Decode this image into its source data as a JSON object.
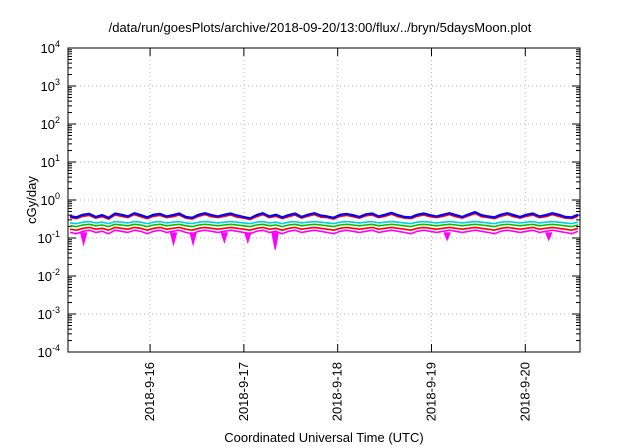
{
  "chart_data": {
    "type": "line",
    "title": "/data/run/goesPlots/archive/2018-09-20/13:00/flux/../bryn/5daysMoon.plot",
    "xlabel": "Coordinated Universal Time (UTC)",
    "ylabel": "cGy/day",
    "yscale": "log",
    "ylim": [
      0.0001,
      10000
    ],
    "y_ticks": [
      {
        "base": "10",
        "exp": "-4"
      },
      {
        "base": "10",
        "exp": "-3"
      },
      {
        "base": "10",
        "exp": "-2"
      },
      {
        "base": "10",
        "exp": "-1"
      },
      {
        "base": "10",
        "exp": "0"
      },
      {
        "base": "10",
        "exp": "1"
      },
      {
        "base": "10",
        "exp": "2"
      },
      {
        "base": "10",
        "exp": "3"
      },
      {
        "base": "10",
        "exp": "4"
      }
    ],
    "xlim": [
      "2018-09-15 03:00",
      "2018-09-20 14:00"
    ],
    "x_ticks": [
      {
        "label": "2018-9-16",
        "value": "2018-09-16 00:00"
      },
      {
        "label": "2018-9-17",
        "value": "2018-09-17 00:00"
      },
      {
        "label": "2018-9-18",
        "value": "2018-09-18 00:00"
      },
      {
        "label": "2018-9-19",
        "value": "2018-09-19 00:00"
      },
      {
        "label": "2018-9-20",
        "value": "2018-09-20 00:00"
      }
    ],
    "grid": true,
    "legend": "none",
    "series": [
      {
        "color": "#ff00ff",
        "values": [
          0.14,
          0.13,
          0.15,
          0.16,
          0.14,
          0.15,
          0.13,
          0.16,
          0.15,
          0.14,
          0.16,
          0.15,
          0.13,
          0.15,
          0.16,
          0.14,
          0.15,
          0.16,
          0.14,
          0.13,
          0.15,
          0.16,
          0.15,
          0.14,
          0.15,
          0.16,
          0.15,
          0.14,
          0.13,
          0.15,
          0.16,
          0.14,
          0.15,
          0.13,
          0.15,
          0.16,
          0.14,
          0.15,
          0.16,
          0.15,
          0.14,
          0.13,
          0.15,
          0.16,
          0.15,
          0.14,
          0.15,
          0.16,
          0.14,
          0.15,
          0.16,
          0.15,
          0.14,
          0.13,
          0.15,
          0.16,
          0.15,
          0.14,
          0.15,
          0.16,
          0.15,
          0.14,
          0.15,
          0.16,
          0.15,
          0.14,
          0.13,
          0.15,
          0.16,
          0.15,
          0.14,
          0.15,
          0.16,
          0.14,
          0.15,
          0.16,
          0.15,
          0.14,
          0.13,
          0.15
        ]
      },
      {
        "color": "#ff0000",
        "values": [
          0.17,
          0.16,
          0.18,
          0.19,
          0.17,
          0.18,
          0.16,
          0.19,
          0.18,
          0.17,
          0.19,
          0.18,
          0.16,
          0.18,
          0.19,
          0.17,
          0.18,
          0.19,
          0.17,
          0.16,
          0.18,
          0.19,
          0.18,
          0.17,
          0.18,
          0.19,
          0.18,
          0.17,
          0.16,
          0.18,
          0.19,
          0.17,
          0.18,
          0.16,
          0.18,
          0.19,
          0.17,
          0.18,
          0.19,
          0.18,
          0.17,
          0.16,
          0.18,
          0.19,
          0.18,
          0.17,
          0.18,
          0.19,
          0.17,
          0.18,
          0.19,
          0.18,
          0.17,
          0.16,
          0.18,
          0.19,
          0.18,
          0.17,
          0.18,
          0.19,
          0.18,
          0.17,
          0.18,
          0.19,
          0.18,
          0.17,
          0.16,
          0.18,
          0.19,
          0.18,
          0.17,
          0.18,
          0.19,
          0.17,
          0.18,
          0.19,
          0.18,
          0.17,
          0.16,
          0.18
        ]
      },
      {
        "color": "#00c000",
        "values": [
          0.21,
          0.2,
          0.22,
          0.23,
          0.21,
          0.22,
          0.2,
          0.23,
          0.22,
          0.21,
          0.23,
          0.22,
          0.2,
          0.22,
          0.23,
          0.21,
          0.22,
          0.23,
          0.21,
          0.2,
          0.22,
          0.23,
          0.22,
          0.21,
          0.22,
          0.23,
          0.22,
          0.21,
          0.2,
          0.22,
          0.23,
          0.21,
          0.22,
          0.2,
          0.22,
          0.23,
          0.21,
          0.22,
          0.23,
          0.22,
          0.21,
          0.2,
          0.22,
          0.23,
          0.22,
          0.21,
          0.22,
          0.23,
          0.21,
          0.22,
          0.23,
          0.22,
          0.21,
          0.2,
          0.22,
          0.23,
          0.22,
          0.21,
          0.22,
          0.23,
          0.22,
          0.21,
          0.22,
          0.23,
          0.22,
          0.21,
          0.2,
          0.22,
          0.23,
          0.22,
          0.21,
          0.22,
          0.23,
          0.21,
          0.22,
          0.23,
          0.22,
          0.21,
          0.2,
          0.22
        ]
      },
      {
        "color": "#00d0e0",
        "values": [
          0.25,
          0.24,
          0.26,
          0.27,
          0.25,
          0.26,
          0.24,
          0.27,
          0.26,
          0.25,
          0.27,
          0.26,
          0.24,
          0.26,
          0.27,
          0.25,
          0.26,
          0.27,
          0.25,
          0.24,
          0.26,
          0.27,
          0.26,
          0.25,
          0.26,
          0.27,
          0.26,
          0.25,
          0.24,
          0.26,
          0.27,
          0.25,
          0.26,
          0.24,
          0.26,
          0.27,
          0.25,
          0.26,
          0.27,
          0.26,
          0.25,
          0.24,
          0.26,
          0.27,
          0.26,
          0.25,
          0.26,
          0.27,
          0.25,
          0.26,
          0.27,
          0.26,
          0.25,
          0.24,
          0.26,
          0.27,
          0.26,
          0.25,
          0.26,
          0.27,
          0.26,
          0.25,
          0.26,
          0.27,
          0.26,
          0.25,
          0.24,
          0.26,
          0.27,
          0.26,
          0.25,
          0.26,
          0.27,
          0.25,
          0.26,
          0.27,
          0.26,
          0.25,
          0.24,
          0.26
        ]
      },
      {
        "color": "#ff0000",
        "values": [
          0.35,
          0.33,
          0.38,
          0.4,
          0.34,
          0.37,
          0.32,
          0.41,
          0.38,
          0.35,
          0.42,
          0.37,
          0.33,
          0.38,
          0.4,
          0.35,
          0.37,
          0.41,
          0.34,
          0.32,
          0.38,
          0.42,
          0.37,
          0.35,
          0.38,
          0.41,
          0.36,
          0.34,
          0.31,
          0.37,
          0.42,
          0.35,
          0.38,
          0.33,
          0.37,
          0.41,
          0.34,
          0.38,
          0.42,
          0.36,
          0.35,
          0.32,
          0.38,
          0.4,
          0.37,
          0.34,
          0.39,
          0.41,
          0.35,
          0.38,
          0.43,
          0.37,
          0.34,
          0.33,
          0.38,
          0.41,
          0.37,
          0.35,
          0.38,
          0.42,
          0.37,
          0.34,
          0.39,
          0.45,
          0.37,
          0.35,
          0.33,
          0.38,
          0.42,
          0.37,
          0.34,
          0.38,
          0.41,
          0.35,
          0.37,
          0.42,
          0.38,
          0.34,
          0.33,
          0.38
        ]
      },
      {
        "color": "#0000ff",
        "values": [
          0.38,
          0.35,
          0.41,
          0.43,
          0.36,
          0.4,
          0.34,
          0.44,
          0.41,
          0.37,
          0.45,
          0.4,
          0.35,
          0.41,
          0.43,
          0.37,
          0.4,
          0.44,
          0.36,
          0.34,
          0.41,
          0.45,
          0.4,
          0.37,
          0.41,
          0.44,
          0.39,
          0.36,
          0.33,
          0.4,
          0.45,
          0.37,
          0.41,
          0.35,
          0.4,
          0.44,
          0.36,
          0.41,
          0.45,
          0.39,
          0.37,
          0.34,
          0.41,
          0.43,
          0.4,
          0.36,
          0.42,
          0.44,
          0.37,
          0.41,
          0.46,
          0.4,
          0.36,
          0.35,
          0.41,
          0.44,
          0.4,
          0.37,
          0.41,
          0.45,
          0.4,
          0.36,
          0.42,
          0.48,
          0.4,
          0.37,
          0.35,
          0.41,
          0.45,
          0.4,
          0.36,
          0.41,
          0.44,
          0.37,
          0.4,
          0.45,
          0.41,
          0.36,
          0.35,
          0.41
        ]
      }
    ],
    "dips": [
      {
        "x": "2018-09-15 07:00",
        "y": 0.07
      },
      {
        "x": "2018-09-16 06:00",
        "y": 0.07
      },
      {
        "x": "2018-09-16 11:00",
        "y": 0.07
      },
      {
        "x": "2018-09-16 19:00",
        "y": 0.08
      },
      {
        "x": "2018-09-17 01:00",
        "y": 0.08
      },
      {
        "x": "2018-09-17 08:00",
        "y": 0.05
      },
      {
        "x": "2018-09-19 04:00",
        "y": 0.09
      },
      {
        "x": "2018-09-20 06:00",
        "y": 0.09
      }
    ]
  }
}
